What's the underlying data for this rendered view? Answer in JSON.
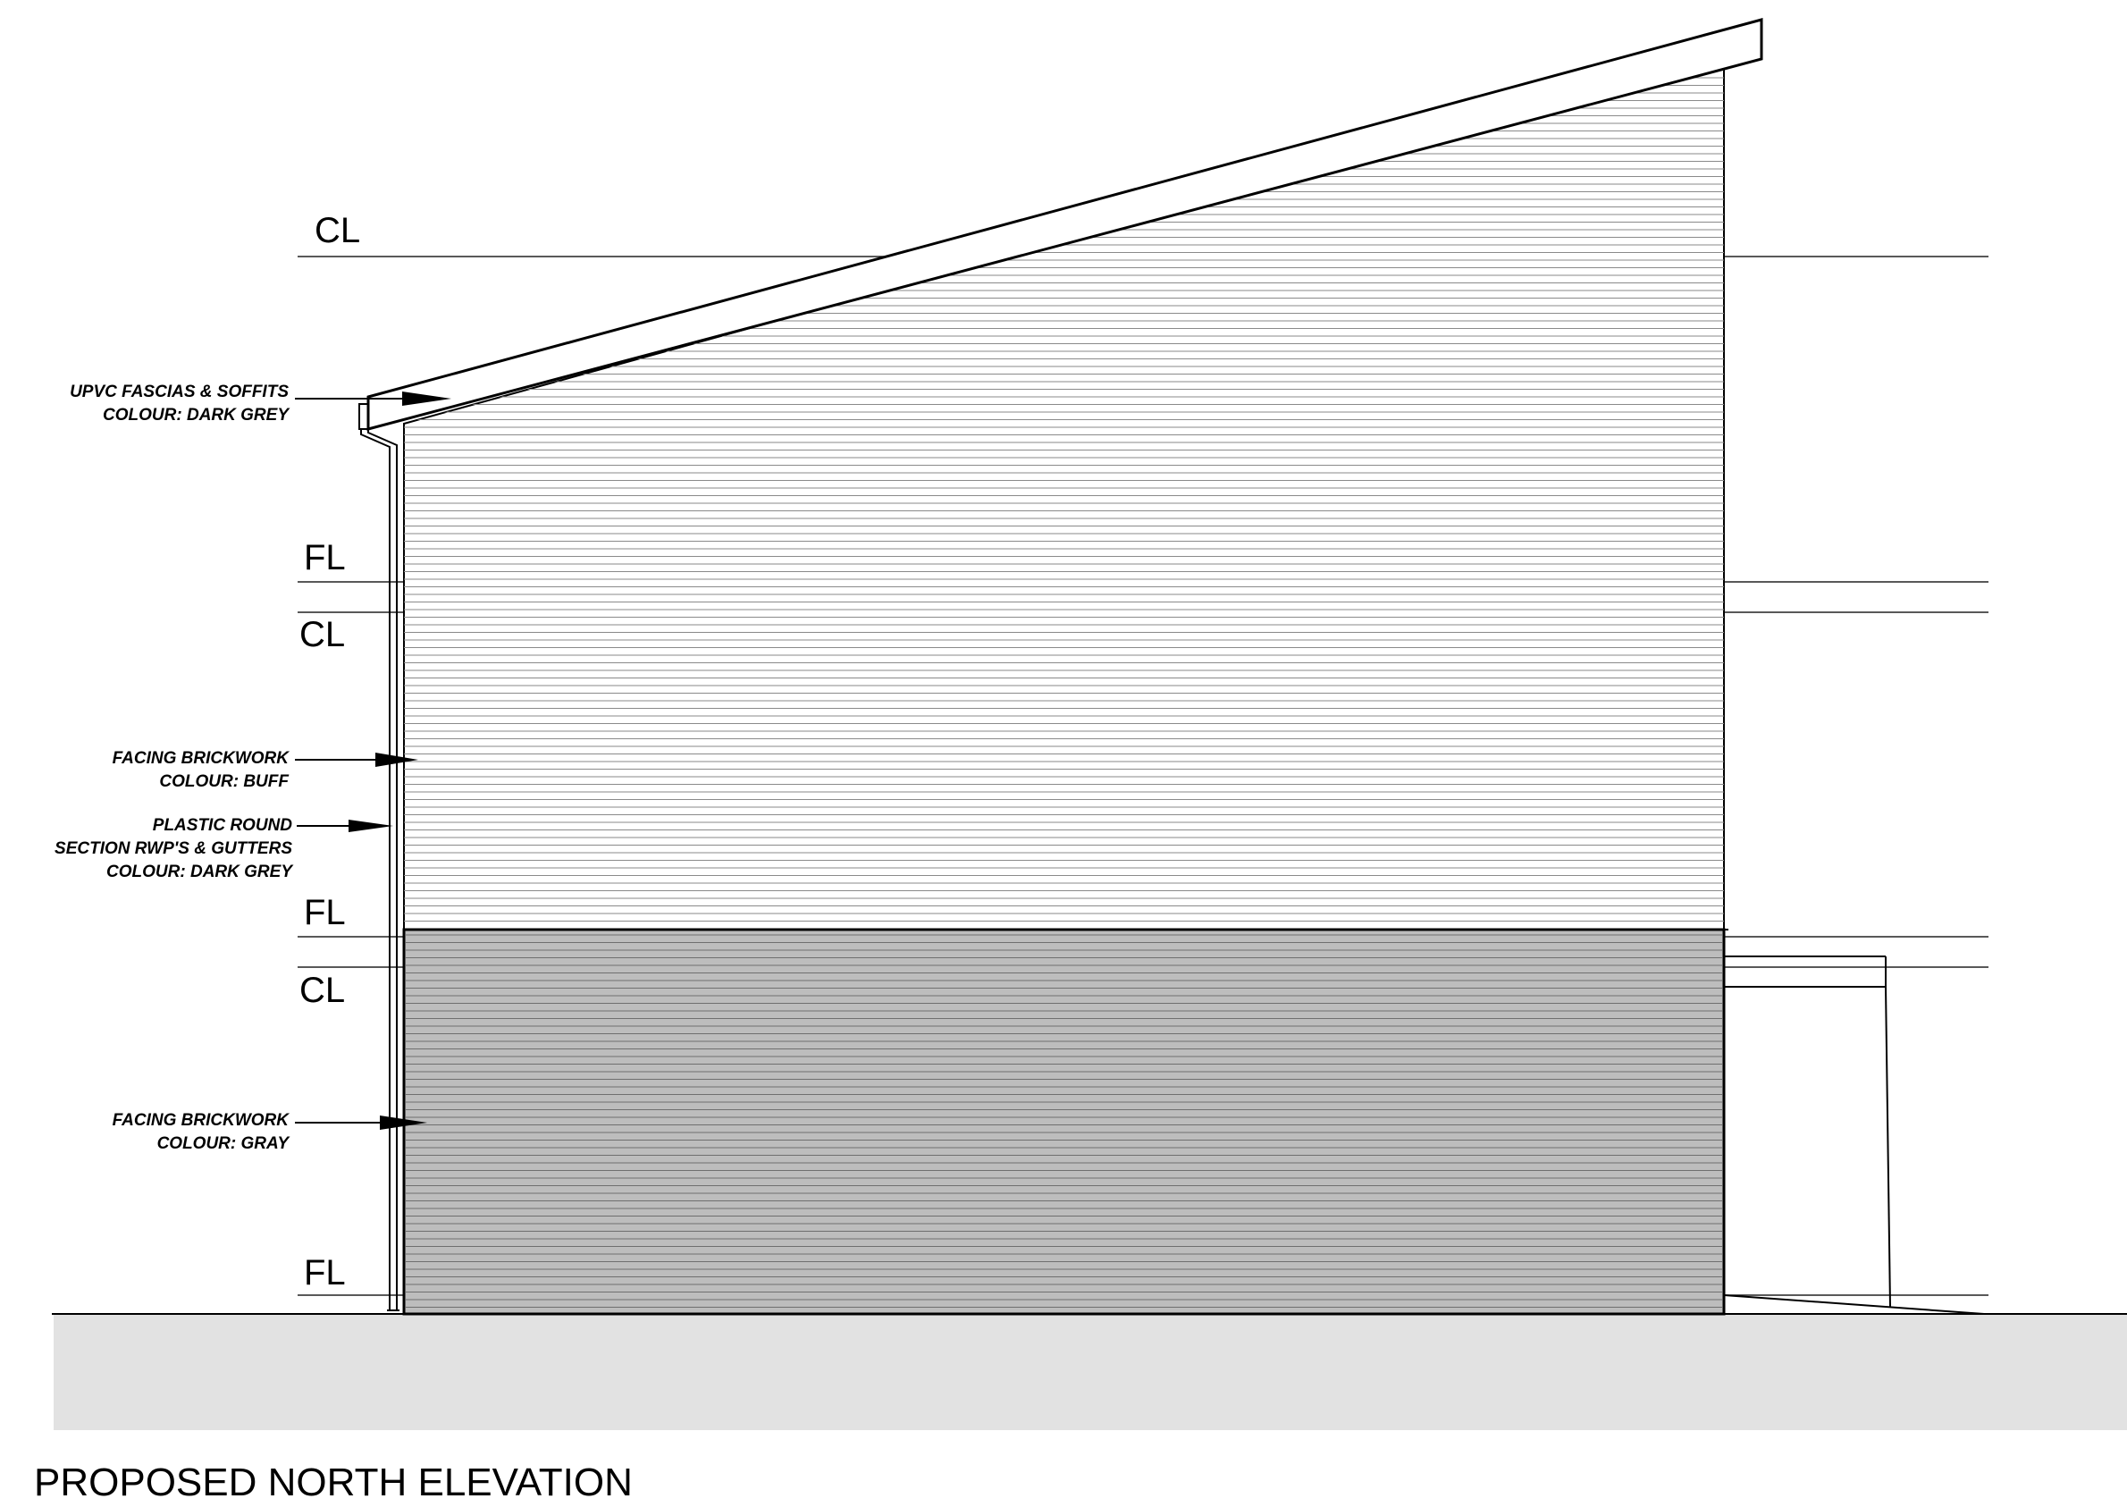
{
  "drawing_title": "PROPOSED NORTH ELEVATION",
  "level_markers": {
    "top_ceiling": "CL",
    "first_floor": "FL",
    "first_ceiling": "CL",
    "mid_floor": "FL",
    "ground_ceiling": "CL",
    "ground_floor": "FL"
  },
  "annotations": {
    "fascias": {
      "line1": "UPVC FASCIAS & SOFFITS",
      "line2": "COLOUR: DARK GREY"
    },
    "brick_upper": {
      "line1": "FACING BRICKWORK",
      "line2": "COLOUR: BUFF"
    },
    "rwp": {
      "line1": "PLASTIC ROUND",
      "line2": "SECTION RWP'S & GUTTERS",
      "line3": "COLOUR: DARK GREY"
    },
    "brick_lower": {
      "line1": "FACING BRICKWORK",
      "line2": "COLOUR: GRAY"
    }
  },
  "colors": {
    "linework": "#000000",
    "upper_brick_fill": "#ffffff",
    "lower_brick_fill": "#bdbdbd",
    "ground_band": "#e2e2e2"
  }
}
